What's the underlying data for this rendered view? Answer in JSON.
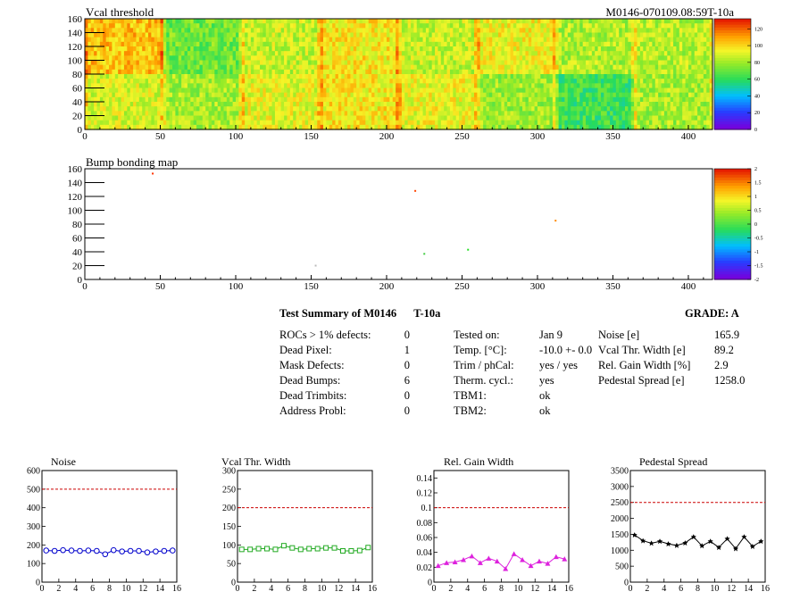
{
  "header": {
    "threshold_title": "Vcal threshold",
    "module_id": "M0146-070109.08:59T-10a",
    "bump_title": "Bump bonding map"
  },
  "maps": {
    "threshold": {
      "xticks": [
        "0",
        "50",
        "100",
        "150",
        "200",
        "250",
        "300",
        "350",
        "400"
      ],
      "yticks": [
        "0",
        "20",
        "40",
        "60",
        "80",
        "100",
        "120",
        "140",
        "160"
      ],
      "colorbar_ticks": [
        "0",
        "20",
        "40",
        "60",
        "80",
        "100",
        "120"
      ],
      "roc_levels_top": [
        0.8,
        0.55,
        0.66,
        0.74,
        0.66,
        0.72,
        0.63,
        0.64
      ],
      "roc_levels_bottom": [
        0.68,
        0.62,
        0.7,
        0.74,
        0.71,
        0.61,
        0.48,
        0.62
      ]
    },
    "bump": {
      "xticks": [
        "0",
        "50",
        "100",
        "150",
        "200",
        "250",
        "300",
        "350",
        "400"
      ],
      "yticks": [
        "0",
        "20",
        "40",
        "60",
        "80",
        "100",
        "120",
        "140",
        "160"
      ],
      "colorbar_ticks": [
        "-2",
        "-1.5",
        "-1",
        "-0.5",
        "0",
        "0.5",
        "1",
        "1.5",
        "2"
      ],
      "hot_pixels": [
        {
          "x": 45,
          "y": 153,
          "color": "#ff3300"
        },
        {
          "x": 219,
          "y": 128,
          "color": "#ff4400"
        },
        {
          "x": 312,
          "y": 85,
          "color": "#ff8800"
        },
        {
          "x": 254,
          "y": 43,
          "color": "#22dd22"
        },
        {
          "x": 225,
          "y": 37,
          "color": "#44cc44"
        },
        {
          "x": 153,
          "y": 20,
          "color": "#bbbbbb"
        }
      ]
    }
  },
  "summary": {
    "title": "Test Summary of M0146",
    "temp_tag": "T-10a",
    "grade": "GRADE:  A",
    "defects": [
      {
        "label": "ROCs > 1% defects:",
        "value": "0"
      },
      {
        "label": "Dead Pixel:",
        "value": "1"
      },
      {
        "label": "Mask Defects:",
        "value": "0"
      },
      {
        "label": "Dead Bumps:",
        "value": "6"
      },
      {
        "label": "Dead Trimbits:",
        "value": "0"
      },
      {
        "label": "Address Probl:",
        "value": "0"
      }
    ],
    "conditions": [
      {
        "label": "Tested on:",
        "value": "Jan 9"
      },
      {
        "label": "Temp. [°C]:",
        "value": "-10.0 +- 0.0"
      },
      {
        "label": "Trim / phCal:",
        "value": "yes / yes"
      },
      {
        "label": "Therm. cycl.:",
        "value": "yes"
      },
      {
        "label": "TBM1:",
        "value": "ok"
      },
      {
        "label": "TBM2:",
        "value": "ok"
      }
    ],
    "results": [
      {
        "label": "Noise [e]",
        "value": "165.9"
      },
      {
        "label": "Vcal Thr. Width [e]",
        "value": "89.2"
      },
      {
        "label": "Rel. Gain Width [%]",
        "value": "2.9"
      },
      {
        "label": "Pedestal Spread [e]",
        "value": "1258.0"
      }
    ]
  },
  "chart_data": [
    {
      "type": "scatter",
      "title": "Noise",
      "color": "#0000cc",
      "marker": "circle-open",
      "x": [
        0,
        1,
        2,
        3,
        4,
        5,
        6,
        7,
        8,
        9,
        10,
        11,
        12,
        13,
        14,
        15
      ],
      "values": [
        170,
        168,
        172,
        170,
        168,
        170,
        168,
        150,
        172,
        165,
        168,
        168,
        160,
        165,
        168,
        170
      ],
      "limit": 500,
      "ylim": [
        0,
        600
      ],
      "xlim": [
        0,
        16
      ],
      "yticks": [
        "0",
        "100",
        "200",
        "300",
        "400",
        "500",
        "600"
      ],
      "xticks": [
        "0",
        "2",
        "4",
        "6",
        "8",
        "10",
        "12",
        "14",
        "16"
      ]
    },
    {
      "type": "scatter",
      "title": "Vcal Thr. Width",
      "color": "#22aa22",
      "marker": "square-open",
      "x": [
        0,
        1,
        2,
        3,
        4,
        5,
        6,
        7,
        8,
        9,
        10,
        11,
        12,
        13,
        14,
        15
      ],
      "values": [
        88,
        88,
        90,
        90,
        88,
        98,
        92,
        88,
        90,
        90,
        92,
        92,
        84,
        84,
        85,
        93
      ],
      "limit": 200,
      "ylim": [
        0,
        300
      ],
      "xlim": [
        0,
        16
      ],
      "yticks": [
        "0",
        "50",
        "100",
        "150",
        "200",
        "250",
        "300"
      ],
      "xticks": [
        "0",
        "2",
        "4",
        "6",
        "8",
        "10",
        "12",
        "14",
        "16"
      ]
    },
    {
      "type": "scatter",
      "title": "Rel. Gain Width",
      "color": "#dd22dd",
      "marker": "triangle",
      "x": [
        0,
        1,
        2,
        3,
        4,
        5,
        6,
        7,
        8,
        9,
        10,
        11,
        12,
        13,
        14,
        15
      ],
      "values": [
        0.022,
        0.026,
        0.027,
        0.03,
        0.035,
        0.026,
        0.032,
        0.028,
        0.018,
        0.038,
        0.03,
        0.022,
        0.028,
        0.025,
        0.034,
        0.031
      ],
      "limit": 0.1,
      "ylim": [
        0,
        0.15
      ],
      "xlim": [
        0,
        16
      ],
      "yticks": [
        "0",
        "0.02",
        "0.04",
        "0.06",
        "0.08",
        "0.1",
        "0.12",
        "0.14"
      ],
      "xticks": [
        "0",
        "2",
        "4",
        "6",
        "8",
        "10",
        "12",
        "14",
        "16"
      ]
    },
    {
      "type": "scatter",
      "title": "Pedestal Spread",
      "color": "#000000",
      "marker": "star",
      "x": [
        0,
        1,
        2,
        3,
        4,
        5,
        6,
        7,
        8,
        9,
        10,
        11,
        12,
        13,
        14,
        15
      ],
      "values": [
        1480,
        1300,
        1220,
        1280,
        1200,
        1150,
        1230,
        1420,
        1140,
        1280,
        1090,
        1360,
        1050,
        1420,
        1120,
        1280
      ],
      "limit": 2500,
      "ylim": [
        0,
        3500
      ],
      "xlim": [
        0,
        16
      ],
      "yticks": [
        "0",
        "500",
        "1000",
        "1500",
        "2000",
        "2500",
        "3000",
        "3500"
      ],
      "xticks": [
        "0",
        "2",
        "4",
        "6",
        "8",
        "10",
        "12",
        "14",
        "16"
      ]
    }
  ]
}
